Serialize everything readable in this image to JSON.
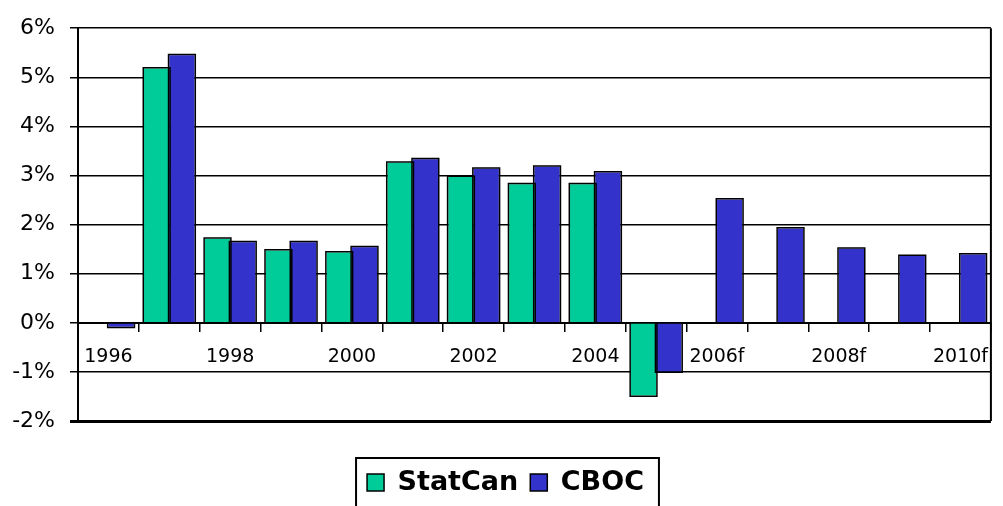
{
  "chart_data": {
    "type": "bar",
    "categories": [
      "1996",
      null,
      "1998",
      null,
      "2000",
      null,
      "2002",
      null,
      "2004",
      null,
      "2006f",
      null,
      "2008f",
      null,
      "2010f"
    ],
    "series": [
      {
        "name": "StatCan",
        "color": "#00cc99",
        "values": [
          null,
          5.18,
          1.71,
          1.47,
          1.43,
          3.26,
          2.97,
          2.82,
          2.82,
          -1.48,
          null,
          null,
          null,
          null,
          null
        ]
      },
      {
        "name": "CBOC",
        "color": "#3333cc",
        "values": [
          -0.08,
          5.45,
          1.64,
          1.64,
          1.54,
          3.33,
          3.14,
          3.18,
          3.06,
          -0.99,
          2.51,
          1.92,
          1.51,
          1.36,
          1.39
        ]
      }
    ],
    "ylim": [
      -2,
      6
    ],
    "yticks": [
      {
        "value": -2,
        "label": "-2%"
      },
      {
        "value": -1,
        "label": "-1%"
      },
      {
        "value": 0,
        "label": "0%"
      },
      {
        "value": 1,
        "label": "1%"
      },
      {
        "value": 2,
        "label": "2%"
      },
      {
        "value": 3,
        "label": "3%"
      },
      {
        "value": 4,
        "label": "4%"
      },
      {
        "value": 5,
        "label": "5%"
      },
      {
        "value": 6,
        "label": "6%"
      }
    ],
    "grid": "y",
    "legend": "bottom"
  }
}
